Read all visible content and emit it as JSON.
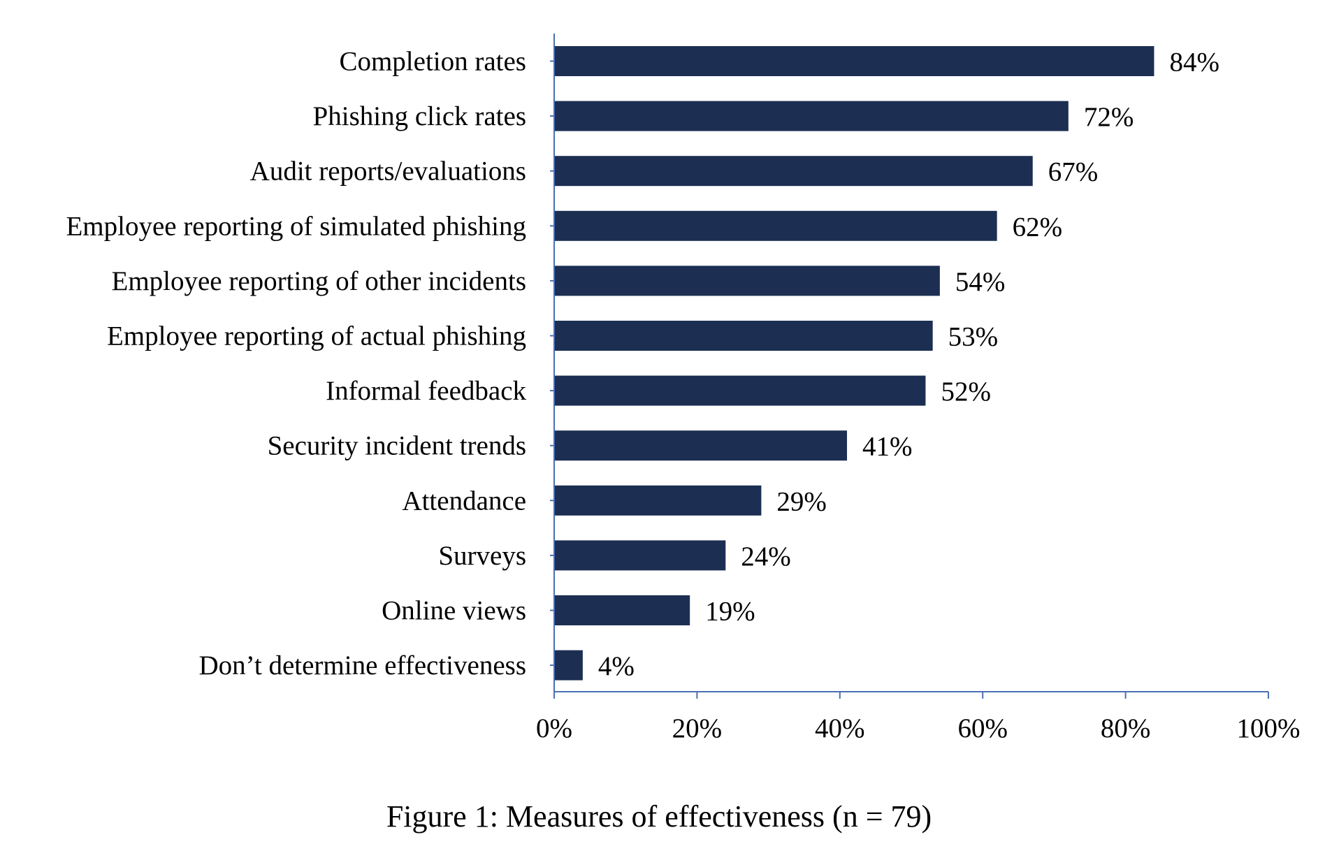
{
  "chart_data": {
    "type": "bar",
    "orientation": "horizontal",
    "categories": [
      "Completion rates",
      "Phishing click rates",
      "Audit reports/evaluations",
      "Employee reporting of simulated phishing",
      "Employee reporting of other incidents",
      "Employee reporting of actual phishing",
      "Informal feedback",
      "Security incident trends",
      "Attendance",
      "Surveys",
      "Online views",
      "Don’t determine effectiveness"
    ],
    "values": [
      84,
      72,
      67,
      62,
      54,
      53,
      52,
      41,
      29,
      24,
      19,
      4
    ],
    "value_labels": [
      "84%",
      "72%",
      "67%",
      "62%",
      "54%",
      "53%",
      "52%",
      "41%",
      "29%",
      "24%",
      "19%",
      "4%"
    ],
    "xlim": [
      0,
      100
    ],
    "xticks": [
      0,
      20,
      40,
      60,
      80,
      100
    ],
    "xtick_labels": [
      "0%",
      "20%",
      "40%",
      "60%",
      "80%",
      "100%"
    ],
    "title": "",
    "xlabel": "",
    "ylabel": "",
    "caption": "Figure 1: Measures of effectiveness (n = 79)",
    "grid": false,
    "legend": "none",
    "colors": {
      "bar": "#1c2e52",
      "axis": "#4a6fb5",
      "text": "#000000"
    }
  }
}
